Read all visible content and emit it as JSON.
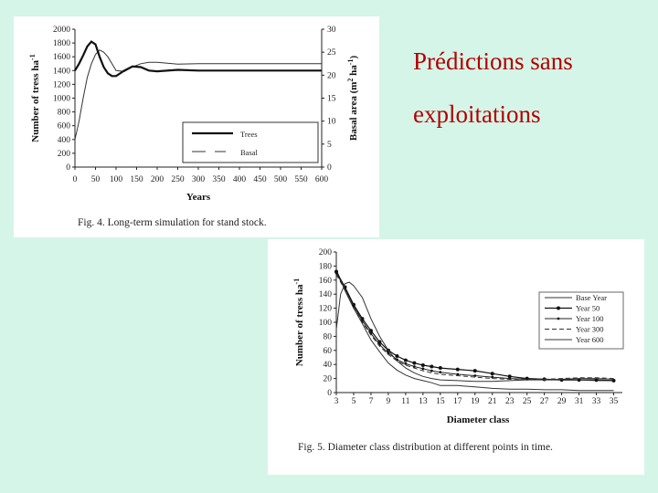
{
  "slide": {
    "title_line1": "Prédictions sans",
    "title_line2": "exploitations"
  },
  "chart_data": [
    {
      "type": "line",
      "caption": "Fig. 4.  Long-term simulation for stand stock.",
      "xlabel": "Years",
      "ylabel_left": "Number of tress ha-1",
      "ylabel_right": "Basal area (m2 ha-1)",
      "xlim": [
        0,
        600
      ],
      "ylim_left": [
        0,
        2000
      ],
      "ylim_right": [
        0,
        30
      ],
      "xticks": [
        "0",
        "50",
        "100",
        "150",
        "200",
        "250",
        "300",
        "350",
        "400",
        "450",
        "500",
        "550",
        "600"
      ],
      "yticks_left": [
        "0",
        "200",
        "400",
        "600",
        "800",
        "1000",
        "1200",
        "1400",
        "1600",
        "1800",
        "2000"
      ],
      "yticks_right": [
        "0",
        "5",
        "10",
        "15",
        "20",
        "25",
        "30"
      ],
      "legend": [
        "Trees",
        "Basal"
      ],
      "legend_position": "bottom-right",
      "grid": false,
      "series": [
        {
          "name": "Trees",
          "axis": "left",
          "style": "solid-bold",
          "x": [
            0,
            10,
            20,
            30,
            40,
            50,
            60,
            70,
            80,
            90,
            100,
            120,
            140,
            160,
            180,
            200,
            250,
            300,
            400,
            500,
            600
          ],
          "y": [
            1400,
            1500,
            1620,
            1750,
            1820,
            1780,
            1600,
            1450,
            1360,
            1320,
            1320,
            1400,
            1460,
            1450,
            1400,
            1390,
            1410,
            1400,
            1400,
            1400,
            1400
          ]
        },
        {
          "name": "Basal",
          "axis": "right",
          "style": "thin",
          "x": [
            0,
            10,
            20,
            30,
            40,
            50,
            60,
            70,
            80,
            90,
            100,
            120,
            140,
            160,
            180,
            200,
            250,
            300,
            400,
            500,
            600
          ],
          "y": [
            6,
            10,
            15,
            19.5,
            22.5,
            24.5,
            25.5,
            25,
            24,
            22.5,
            21,
            20.8,
            21.8,
            22.5,
            22.8,
            22.8,
            22.4,
            22.5,
            22.5,
            22.5,
            22.5
          ]
        }
      ]
    },
    {
      "type": "line",
      "caption": "Fig. 5.  Diameter class distribution at different points in time.",
      "xlabel": "Diameter class",
      "ylabel": "Number of tress ha-1",
      "xlim": [
        3,
        36
      ],
      "ylim": [
        0,
        200
      ],
      "xticks": [
        "3",
        "5",
        "7",
        "9",
        "11",
        "13",
        "15",
        "17",
        "19",
        "21",
        "23",
        "25",
        "27",
        "29",
        "31",
        "33",
        "35"
      ],
      "yticks": [
        "0",
        "20",
        "40",
        "60",
        "80",
        "100",
        "120",
        "140",
        "160",
        "180",
        "200"
      ],
      "legend": [
        "Base Year",
        "Year 50",
        "Year 100",
        "Year 300",
        "Year 600"
      ],
      "legend_position": "right",
      "grid": false,
      "series": [
        {
          "name": "Base Year",
          "style": "thin",
          "x": [
            3,
            4,
            5,
            6,
            7,
            8,
            9,
            10,
            11,
            12,
            13,
            14,
            15,
            17,
            19,
            21,
            23,
            25,
            27,
            29,
            31,
            33,
            35
          ],
          "y": [
            175,
            145,
            120,
            98,
            75,
            58,
            42,
            32,
            25,
            20,
            17,
            14,
            10,
            10,
            8,
            6,
            5,
            5,
            4,
            4,
            3,
            3,
            3
          ]
        },
        {
          "name": "Year 50",
          "style": "markers",
          "x": [
            3,
            4,
            5,
            6,
            7,
            8,
            9,
            10,
            11,
            12,
            13,
            14,
            15,
            17,
            19,
            21,
            23,
            25,
            27,
            29,
            31,
            33,
            35
          ],
          "y": [
            172,
            150,
            125,
            105,
            88,
            72,
            60,
            52,
            46,
            42,
            39,
            37,
            35,
            33,
            31,
            27,
            23,
            20,
            19,
            18,
            18,
            18,
            17
          ]
        },
        {
          "name": "Year 100",
          "style": "markers-small",
          "x": [
            3,
            4,
            5,
            6,
            7,
            8,
            9,
            10,
            11,
            12,
            13,
            14,
            15,
            17,
            19,
            21,
            23,
            25,
            27,
            29,
            31,
            33,
            35
          ],
          "y": [
            170,
            148,
            123,
            102,
            84,
            68,
            56,
            47,
            41,
            37,
            34,
            31,
            29,
            26,
            24,
            22,
            20,
            19,
            18,
            18,
            18,
            17,
            17
          ]
        },
        {
          "name": "Year 300",
          "style": "dashed",
          "x": [
            3,
            4,
            5,
            6,
            7,
            8,
            9,
            10,
            11,
            12,
            13,
            14,
            15,
            17,
            19,
            21,
            23,
            25,
            27,
            29,
            31,
            33,
            35
          ],
          "y": [
            168,
            146,
            120,
            100,
            82,
            66,
            54,
            45,
            39,
            35,
            31,
            28,
            26,
            24,
            22,
            20,
            19,
            19,
            19,
            20,
            21,
            21,
            20
          ]
        },
        {
          "name": "Year 600",
          "style": "thin",
          "x": [
            3,
            3.5,
            4,
            4.5,
            5,
            6,
            7,
            8,
            9,
            10,
            11,
            12,
            13,
            14,
            15,
            17,
            19,
            21,
            23,
            25,
            27,
            29,
            31,
            33,
            35
          ],
          "y": [
            90,
            140,
            155,
            157,
            152,
            135,
            105,
            80,
            60,
            45,
            35,
            28,
            23,
            20,
            18,
            17,
            16,
            16,
            17,
            18,
            18,
            19,
            20,
            20,
            19
          ]
        }
      ]
    }
  ]
}
